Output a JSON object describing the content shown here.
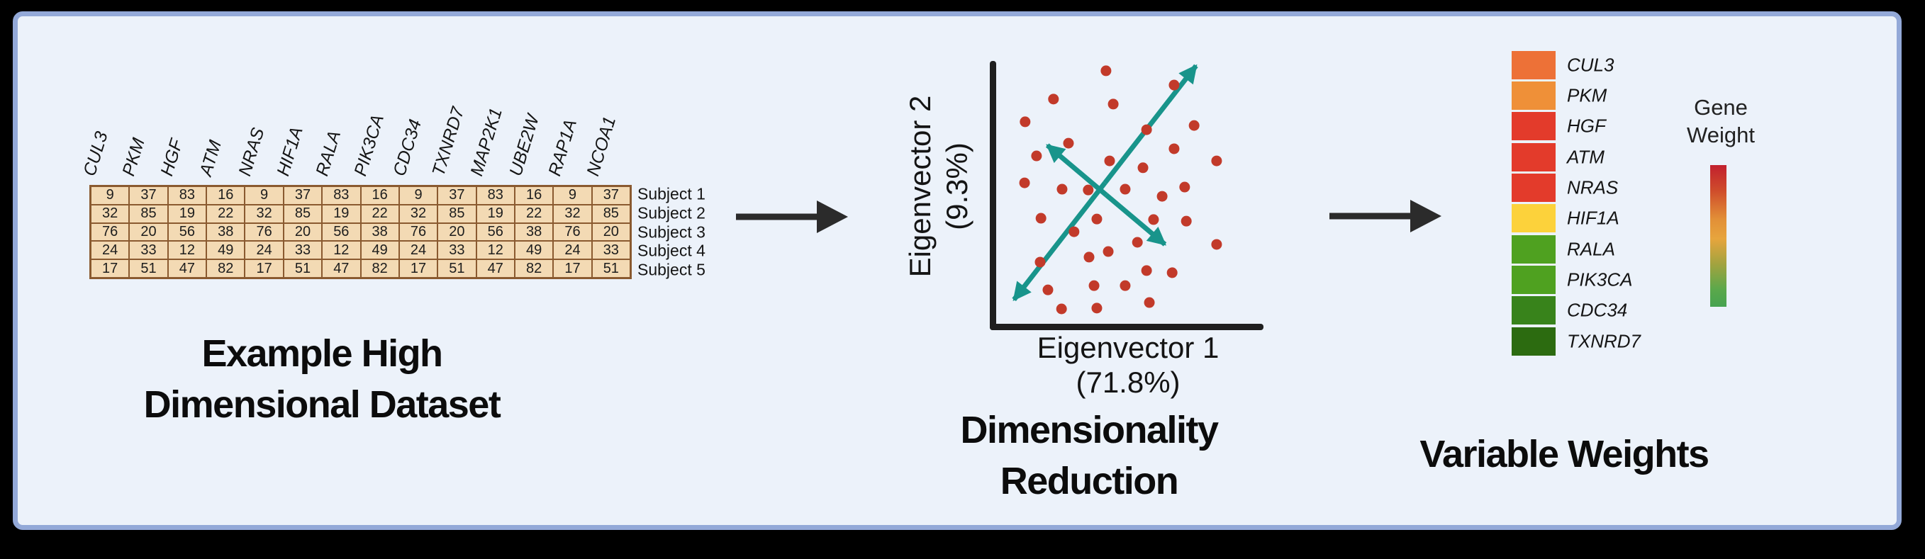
{
  "panel": {
    "background_color": "#ECF2FA",
    "border_color": "#93A9D8",
    "outside_color": "#000000"
  },
  "left": {
    "title_lines": [
      "Example High",
      "Dimensional Dataset"
    ],
    "table_style": {
      "cell_bg": "#F3DAB4",
      "cell_border": "#8A5A30"
    }
  },
  "middle": {
    "title_lines": [
      "Dimensionality",
      "Reduction"
    ],
    "y_label_lines": [
      "Eigenvector 2",
      "(9.3%)"
    ],
    "x_label_lines": [
      "Eigenvector 1",
      "(71.8%)"
    ]
  },
  "right": {
    "title": "Variable Weights",
    "colorbar_label_lines": [
      "Gene",
      "Weight"
    ]
  },
  "flow_arrow_color": "#2B2B2B",
  "chart_data": [
    {
      "type": "table",
      "title": "Example High Dimensional Dataset",
      "columns": [
        "CUL3",
        "PKM",
        "HGF",
        "ATM",
        "NRAS",
        "HIF1A",
        "RALA",
        "PIK3CA",
        "CDC34",
        "TXNRD7",
        "MAP2K1",
        "UBE2W",
        "RAP1A",
        "NCOA1"
      ],
      "row_labels": [
        "Subject 1",
        "Subject 2",
        "Subject 3",
        "Subject 4",
        "Subject 5"
      ],
      "values": [
        [
          9,
          37,
          83,
          16,
          9,
          37,
          83,
          16,
          9,
          37,
          83,
          16,
          9,
          37
        ],
        [
          32,
          85,
          19,
          22,
          32,
          85,
          19,
          22,
          32,
          85,
          19,
          22,
          32,
          85
        ],
        [
          76,
          20,
          56,
          38,
          76,
          20,
          56,
          38,
          76,
          20,
          56,
          38,
          76,
          20
        ],
        [
          24,
          33,
          12,
          49,
          24,
          33,
          12,
          49,
          24,
          33,
          12,
          49,
          24,
          33
        ],
        [
          17,
          51,
          47,
          82,
          17,
          51,
          47,
          82,
          17,
          51,
          47,
          82,
          17,
          51
        ]
      ]
    },
    {
      "type": "scatter",
      "title": "Dimensionality Reduction",
      "xlabel": "Eigenvector 1 (71.8%)",
      "ylabel": "Eigenvector 2 (9.3%)",
      "axis_range_note": "axes unlabeled; point coordinates given as fractions of plot area (origin bottom-left)",
      "point_color": "#C23A2A",
      "points_frac": [
        [
          0.413,
          0.96
        ],
        [
          0.224,
          0.853
        ],
        [
          0.439,
          0.834
        ],
        [
          0.658,
          0.906
        ],
        [
          0.122,
          0.767
        ],
        [
          0.73,
          0.753
        ],
        [
          0.559,
          0.737
        ],
        [
          0.278,
          0.686
        ],
        [
          0.163,
          0.638
        ],
        [
          0.426,
          0.619
        ],
        [
          0.658,
          0.665
        ],
        [
          0.811,
          0.619
        ],
        [
          0.546,
          0.593
        ],
        [
          0.12,
          0.536
        ],
        [
          0.255,
          0.512
        ],
        [
          0.349,
          0.509
        ],
        [
          0.482,
          0.512
        ],
        [
          0.615,
          0.485
        ],
        [
          0.696,
          0.52
        ],
        [
          0.179,
          0.402
        ],
        [
          0.38,
          0.399
        ],
        [
          0.584,
          0.397
        ],
        [
          0.702,
          0.391
        ],
        [
          0.298,
          0.351
        ],
        [
          0.526,
          0.311
        ],
        [
          0.811,
          0.303
        ],
        [
          0.176,
          0.236
        ],
        [
          0.352,
          0.255
        ],
        [
          0.421,
          0.276
        ],
        [
          0.559,
          0.204
        ],
        [
          0.651,
          0.196
        ],
        [
          0.204,
          0.131
        ],
        [
          0.37,
          0.147
        ],
        [
          0.482,
          0.147
        ],
        [
          0.569,
          0.083
        ],
        [
          0.253,
          0.059
        ],
        [
          0.38,
          0.062
        ]
      ],
      "arrow_color": "#18948B",
      "eigen_arrows": [
        {
          "name": "eigenvector-1-direction",
          "from": [
            0.082,
            0.094
          ],
          "to": [
            0.737,
            0.979
          ]
        },
        {
          "name": "eigenvector-2-direction",
          "from": [
            0.202,
            0.678
          ],
          "to": [
            0.625,
            0.303
          ]
        }
      ]
    },
    {
      "type": "heatmap",
      "title": "Variable Weights",
      "categories": [
        "CUL3",
        "PKM",
        "HGF",
        "ATM",
        "NRAS",
        "HIF1A",
        "RALA",
        "PIK3CA",
        "CDC34",
        "TXNRD7"
      ],
      "colors": [
        "#ED7137",
        "#EF9038",
        "#E33B2B",
        "#E33B2B",
        "#E33B2B",
        "#FCD23B",
        "#4FA120",
        "#4FA120",
        "#38831B",
        "#2C6B10"
      ],
      "colorbar": {
        "label": "Gene Weight",
        "top_color": "#C2202E",
        "bottom_color": "#46A350",
        "direction": "high weight (red) at top, low weight (green) at bottom"
      }
    }
  ]
}
